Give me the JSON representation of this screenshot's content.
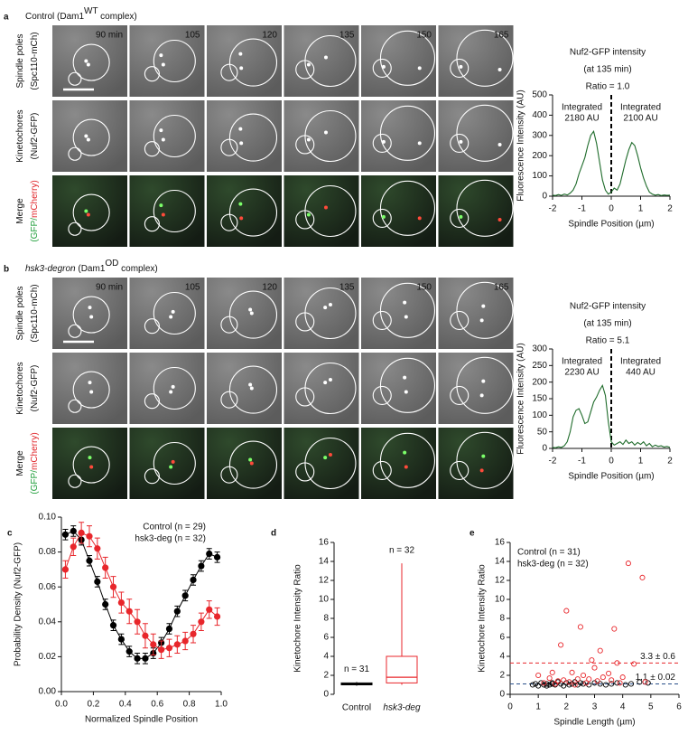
{
  "panels": [
    {
      "label": "a",
      "header": [
        {
          "text": "Control (Dam1"
        },
        {
          "text": "WT",
          "sup": true
        },
        {
          "text": " complex)"
        }
      ],
      "time_labels": [
        "90 min",
        "105",
        "120",
        "135",
        "150",
        "165"
      ],
      "row_labels": [
        [
          [
            {
              "text": "Spindle poles"
            }
          ],
          [
            {
              "text": "(Spc110-mCh)"
            }
          ]
        ],
        [
          [
            {
              "text": "Kinetochores"
            }
          ],
          [
            {
              "text": "(Nuf2-GFP)"
            }
          ]
        ],
        [
          [
            {
              "text": "Merge"
            }
          ],
          [
            {
              "text": "(GFP/",
              "color": "#1f9e3a"
            },
            {
              "text": "mCherry)",
              "color": "#e0262b"
            }
          ]
        ]
      ]
    },
    {
      "label": "b",
      "header": [
        {
          "text": "hsk3-degron",
          "italic": true
        },
        {
          "text": " (Dam1"
        },
        {
          "text": "OD",
          "sup": true
        },
        {
          "text": " complex)"
        }
      ],
      "time_labels": [
        "90 min",
        "105",
        "120",
        "135",
        "150",
        "165"
      ],
      "row_labels": [
        [
          [
            {
              "text": "Spindle poles"
            }
          ],
          [
            {
              "text": "(Spc110-mCh)"
            }
          ]
        ],
        [
          [
            {
              "text": "Kinetochores"
            }
          ],
          [
            {
              "text": "(Nuf2-GFP)"
            }
          ]
        ],
        [
          [
            {
              "text": "Merge"
            }
          ],
          [
            {
              "text": "(GFP/",
              "color": "#1f9e3a"
            },
            {
              "text": "mCherry)",
              "color": "#e0262b"
            }
          ]
        ]
      ]
    }
  ],
  "chart_data": [
    {
      "type": "line",
      "title_lines": [
        "Nuf2-GFP intensity",
        "(at 135 min)",
        "Ratio = 1.0"
      ],
      "ylabel": "Fluorescence Intensity (AU)",
      "xlabel": "Spindle Position (µm)",
      "xlim": [
        -2,
        2
      ],
      "xticks": [
        -2,
        -1,
        0,
        1,
        2
      ],
      "ylim": [
        0,
        500
      ],
      "yticks": [
        0,
        100,
        200,
        300,
        400,
        500
      ],
      "divider_x": 0,
      "annotations": [
        {
          "lines": [
            "Integrated",
            "2180 AU"
          ]
        },
        {
          "lines": [
            "Integrated",
            "2100 AU"
          ]
        }
      ],
      "x": [
        -2,
        -1.9,
        -1.8,
        -1.7,
        -1.6,
        -1.5,
        -1.4,
        -1.3,
        -1.2,
        -1.1,
        -1,
        -0.9,
        -0.8,
        -0.7,
        -0.6,
        -0.5,
        -0.4,
        -0.3,
        -0.2,
        -0.1,
        0,
        0.1,
        0.2,
        0.3,
        0.4,
        0.5,
        0.6,
        0.7,
        0.8,
        0.9,
        1,
        1.1,
        1.2,
        1.3,
        1.4,
        1.5,
        1.6,
        1.7,
        1.8,
        1.9,
        2
      ],
      "series": [
        {
          "color": "#1e6b2a",
          "values": [
            5,
            3,
            8,
            4,
            10,
            6,
            15,
            30,
            60,
            110,
            150,
            190,
            250,
            300,
            320,
            260,
            170,
            80,
            30,
            10,
            20,
            40,
            30,
            60,
            120,
            180,
            230,
            265,
            250,
            200,
            140,
            90,
            50,
            20,
            10,
            5,
            8,
            3,
            6,
            4,
            5
          ]
        }
      ]
    },
    {
      "type": "line",
      "title_lines": [
        "Nuf2-GFP intensity",
        "(at 135 min)",
        "Ratio = 5.1"
      ],
      "ylabel": "Fluorescence Intensity (AU)",
      "xlabel": "Spindle Position (µm)",
      "xlim": [
        -2,
        2
      ],
      "xticks": [
        -2,
        -1,
        0,
        1,
        2
      ],
      "ylim": [
        0,
        300
      ],
      "yticks": [
        0,
        50,
        100,
        150,
        200,
        250,
        300
      ],
      "divider_x": 0,
      "annotations": [
        {
          "lines": [
            "Integrated",
            "2230 AU"
          ]
        },
        {
          "lines": [
            "Integrated",
            "440 AU"
          ]
        }
      ],
      "x": [
        -2,
        -1.9,
        -1.8,
        -1.7,
        -1.6,
        -1.5,
        -1.4,
        -1.3,
        -1.2,
        -1.1,
        -1,
        -0.9,
        -0.8,
        -0.7,
        -0.6,
        -0.5,
        -0.4,
        -0.3,
        -0.2,
        -0.1,
        0,
        0.1,
        0.2,
        0.3,
        0.4,
        0.5,
        0.6,
        0.7,
        0.8,
        0.9,
        1,
        1.1,
        1.2,
        1.3,
        1.4,
        1.5,
        1.6,
        1.7,
        1.8,
        1.9,
        2
      ],
      "series": [
        {
          "color": "#1e6b2a",
          "values": [
            3,
            2,
            5,
            3,
            8,
            20,
            50,
            95,
            115,
            120,
            100,
            75,
            80,
            110,
            140,
            155,
            175,
            190,
            160,
            80,
            20,
            10,
            15,
            20,
            12,
            25,
            15,
            20,
            10,
            18,
            12,
            20,
            8,
            15,
            5,
            10,
            6,
            8,
            4,
            6,
            3
          ]
        }
      ]
    },
    {
      "type": "line",
      "panel_label": "c",
      "markers": true,
      "legend": "top-right",
      "ylabel": "Probability Density (Nuf2-GFP)",
      "xlabel": "Normalized Spindle Position",
      "xlim": [
        0,
        1
      ],
      "xticks": [
        {
          "value": 0,
          "label": "0.0"
        },
        0.2,
        0.4,
        0.6,
        0.8,
        {
          "value": 1,
          "label": "1.0"
        }
      ],
      "ylim": [
        0,
        0.1
      ],
      "yticks": [
        {
          "value": 0,
          "label": "0.00"
        },
        {
          "value": 0.02,
          "label": "0.02"
        },
        {
          "value": 0.04,
          "label": "0.04"
        },
        {
          "value": 0.06,
          "label": "0.06"
        },
        {
          "value": 0.08,
          "label": "0.08"
        },
        {
          "value": 0.1,
          "label": "0.10"
        }
      ],
      "x": [
        0.025,
        0.075,
        0.125,
        0.175,
        0.225,
        0.275,
        0.325,
        0.375,
        0.425,
        0.475,
        0.525,
        0.575,
        0.625,
        0.675,
        0.725,
        0.775,
        0.825,
        0.875,
        0.925,
        0.975
      ],
      "series": [
        {
          "name": "Control (n = 29)",
          "color": "#000000",
          "values": [
            0.09,
            0.092,
            0.087,
            0.075,
            0.063,
            0.05,
            0.038,
            0.03,
            0.023,
            0.019,
            0.019,
            0.022,
            0.028,
            0.036,
            0.046,
            0.055,
            0.064,
            0.072,
            0.079,
            0.077
          ],
          "errors": [
            0.003,
            0.003,
            0.003,
            0.003,
            0.003,
            0.003,
            0.003,
            0.003,
            0.003,
            0.003,
            0.003,
            0.003,
            0.003,
            0.003,
            0.003,
            0.003,
            0.003,
            0.003,
            0.003,
            0.003
          ]
        },
        {
          "name": "hsk3-deg (n = 32)",
          "color": "#e8262b",
          "values": [
            0.07,
            0.083,
            0.091,
            0.089,
            0.082,
            0.071,
            0.06,
            0.051,
            0.046,
            0.04,
            0.032,
            0.027,
            0.024,
            0.025,
            0.027,
            0.029,
            0.033,
            0.04,
            0.047,
            0.043
          ],
          "errors": [
            0.005,
            0.005,
            0.006,
            0.006,
            0.006,
            0.006,
            0.006,
            0.006,
            0.007,
            0.007,
            0.007,
            0.006,
            0.005,
            0.005,
            0.005,
            0.005,
            0.005,
            0.005,
            0.005,
            0.005
          ]
        }
      ]
    },
    {
      "type": "box",
      "panel_label": "d",
      "ylabel": "Kinetochore Intensity Ratio",
      "ylim": [
        0,
        16
      ],
      "yticks": [
        0,
        2,
        4,
        6,
        8,
        10,
        12,
        14,
        16
      ],
      "categories": [
        "Control",
        "hsk3-deg"
      ],
      "colors": [
        "#000000",
        "#e8262b"
      ],
      "boxes": [
        {
          "min": 0.9,
          "q1": 1.0,
          "median": 1.1,
          "q3": 1.2,
          "max": 1.3
        },
        {
          "min": 1.0,
          "q1": 1.2,
          "median": 1.8,
          "q3": 4.0,
          "max": 13.8
        }
      ],
      "annotations": [
        "n = 31",
        "n = 32"
      ]
    },
    {
      "type": "scatter",
      "panel_label": "e",
      "legend": "top-left",
      "ylabel": "Kinetochore Intensity Ratio",
      "xlabel": "Spindle Length (µm)",
      "xlim": [
        0,
        6
      ],
      "xticks": [
        0,
        1,
        2,
        3,
        4,
        5,
        6
      ],
      "ylim": [
        0,
        16
      ],
      "yticks": [
        0,
        2,
        4,
        6,
        8,
        10,
        12,
        14,
        16
      ],
      "reference_lines": [
        {
          "value": 3.3,
          "label": "3.3 ± 0.6",
          "color": "#e8262b"
        },
        {
          "value": 1.1,
          "label": "1.1 ± 0.02",
          "color": "#2a4f8a"
        }
      ],
      "series": [
        {
          "name": "Control (n = 31)",
          "color": "#000000",
          "x": [
            0.8,
            0.9,
            1.0,
            1.1,
            1.2,
            1.3,
            1.3,
            1.4,
            1.5,
            1.5,
            1.6,
            1.7,
            1.8,
            1.9,
            2.0,
            2.1,
            2.2,
            2.3,
            2.4,
            2.5,
            2.6,
            2.8,
            3.0,
            3.2,
            3.4,
            3.6,
            3.8,
            4.1,
            4.3,
            4.6,
            4.9
          ],
          "values": [
            1.0,
            1.1,
            0.9,
            1.2,
            1.0,
            1.1,
            0.9,
            1.0,
            1.2,
            1.1,
            1.0,
            1.3,
            1.1,
            0.9,
            1.2,
            1.0,
            1.1,
            1.3,
            1.0,
            1.2,
            1.1,
            1.0,
            1.2,
            1.1,
            1.0,
            1.1,
            1.2,
            1.0,
            1.1,
            1.3,
            1.2
          ]
        },
        {
          "name": "hsk3-deg (n = 32)",
          "color": "#e8262b",
          "x": [
            4.2,
            4.7,
            2.0,
            2.5,
            3.7,
            1.8,
            3.2,
            4.4,
            3.8,
            2.9,
            1.5,
            1.0,
            2.2,
            2.6,
            3.0,
            3.5,
            3.3,
            2.4,
            1.9,
            1.7,
            1.2,
            1.4,
            2.1,
            2.8,
            3.6,
            4.0,
            4.8,
            2.3,
            1.6,
            3.9,
            2.7,
            3.1
          ],
          "values": [
            13.8,
            12.3,
            8.8,
            7.1,
            6.9,
            5.2,
            4.6,
            3.2,
            3.3,
            3.6,
            2.3,
            2.0,
            2.3,
            2.0,
            2.8,
            2.2,
            1.8,
            1.6,
            1.5,
            1.4,
            1.2,
            1.7,
            1.3,
            1.6,
            1.5,
            1.8,
            1.3,
            1.0,
            1.1,
            1.2,
            1.2,
            1.4
          ]
        }
      ]
    }
  ]
}
